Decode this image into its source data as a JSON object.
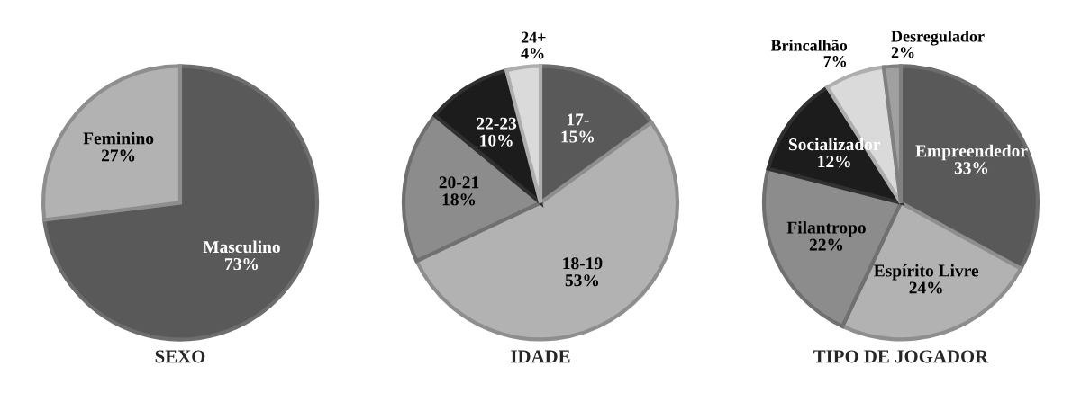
{
  "chart_data": [
    {
      "type": "pie",
      "title": "SEXO",
      "categories": [
        "Masculino",
        "Feminino"
      ],
      "values": [
        73,
        27
      ],
      "value_labels": [
        "73%",
        "27%"
      ],
      "colors": [
        "#595959",
        "#b2b2b2"
      ]
    },
    {
      "type": "pie",
      "title": "IDADE",
      "categories": [
        "17-",
        "18-19",
        "20-21",
        "22-23",
        "24+"
      ],
      "values": [
        15,
        53,
        18,
        10,
        4
      ],
      "value_labels": [
        "15%",
        "53%",
        "18%",
        "10%",
        "4%"
      ],
      "colors": [
        "#595959",
        "#b2b2b2",
        "#8c8c8c",
        "#1c1c1c",
        "#dadada"
      ]
    },
    {
      "type": "pie",
      "title": "TIPO DE JOGADOR",
      "categories": [
        "Empreendedor",
        "Espírito Livre",
        "Filantropo",
        "Socializador",
        "Brincalhão",
        "Desregulador"
      ],
      "values": [
        33,
        24,
        22,
        12,
        7,
        2
      ],
      "value_labels": [
        "33%",
        "24%",
        "22%",
        "12%",
        "7%",
        "2%"
      ],
      "colors": [
        "#595959",
        "#b2b2b2",
        "#8c8c8c",
        "#1c1c1c",
        "#dadada",
        "#a0a0a0"
      ]
    }
  ]
}
